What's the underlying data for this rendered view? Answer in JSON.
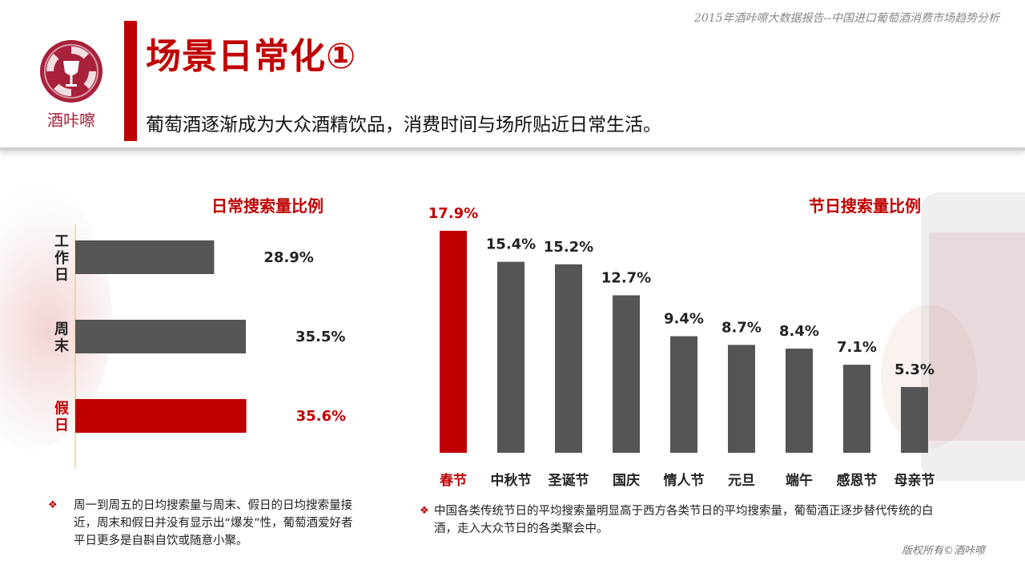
{
  "header": {
    "topnote": "2015年酒咔嚓大数据报告--中国进口葡萄酒消费市场趋势分析",
    "logo_text": "酒咔嚓",
    "title": "场景日常化①",
    "subtitle": "葡萄酒逐渐成为大众酒精饮品，消费时间与场所贴近日常生活。"
  },
  "colors": {
    "accent": "#c00000",
    "bar": "#555555",
    "logo": "#a8203a"
  },
  "chart_data": [
    {
      "type": "bar",
      "orientation": "horizontal",
      "title": "日常搜索量比例",
      "categories": [
        "工作日",
        "周末",
        "假日"
      ],
      "values": [
        28.9,
        35.5,
        35.6
      ],
      "value_labels": [
        "28.9%",
        "35.5%",
        "35.6%"
      ],
      "highlight": [
        "假日"
      ],
      "unit": "%",
      "xlim": [
        0,
        45
      ]
    },
    {
      "type": "bar",
      "orientation": "vertical",
      "title": "节日搜索量比例",
      "categories": [
        "春节",
        "中秋节",
        "圣诞节",
        "国庆",
        "情人节",
        "元旦",
        "端午",
        "感恩节",
        "母亲节"
      ],
      "values": [
        17.9,
        15.4,
        15.2,
        12.7,
        9.4,
        8.7,
        8.4,
        7.1,
        5.3
      ],
      "value_labels": [
        "17.9%",
        "15.4%",
        "15.2%",
        "12.7%",
        "9.4%",
        "8.7%",
        "8.4%",
        "7.1%",
        "5.3%"
      ],
      "highlight": [
        "春节"
      ],
      "unit": "%",
      "ylim": [
        0,
        17.9
      ]
    }
  ],
  "notes": {
    "left_bullet": "❖",
    "left": "周一到周五的日均搜索量与周末、假日的日均搜索量接近，周末和假日并没有显示出“爆发”性，葡萄酒爱好者平日更多是自斟自饮或随意小聚。",
    "right_bullet": "❖",
    "right": "中国各类传统节日的平均搜索量明显高于西方各类节日的平均搜索量，葡萄酒正逐步替代传统的白酒，走入大众节日的各类聚会中。"
  },
  "footer": {
    "copyright": "版权所有©酒咔嚓"
  }
}
